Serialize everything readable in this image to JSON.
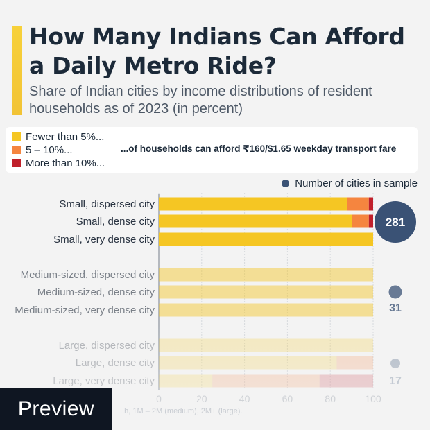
{
  "header": {
    "title": "How Many Indians Can Afford a Daily Metro Ride?",
    "subtitle": "Share of Indian cities by income distributions of resident households as of 2023 (in percent)"
  },
  "legend": {
    "items": [
      {
        "label": "Fewer than 5%...",
        "color": "#f5c623"
      },
      {
        "label": "5 – 10%...",
        "color": "#f5853f"
      },
      {
        "label": "More than 10%...",
        "color": "#c0202b"
      }
    ],
    "note": "...of households can afford ₹160/$1.65 weekday transport fare",
    "cities_label": "Number of cities in sample"
  },
  "chart_data": {
    "type": "bar",
    "orientation": "horizontal",
    "stacked": true,
    "categories": [
      "Small, dispersed city",
      "Small, dense city",
      "Small, very dense city",
      "Medium-sized, dispersed city",
      "Medium-sized, dense city",
      "Medium-sized, very dense city",
      "Large, dispersed city",
      "Large, dense city",
      "Large, very dense city"
    ],
    "series": [
      {
        "name": "Fewer than 5%...",
        "color": "#f5c623",
        "values": [
          88,
          90,
          100,
          100,
          100,
          100,
          100,
          83,
          25
        ]
      },
      {
        "name": "5 – 10%...",
        "color": "#f5853f",
        "values": [
          10,
          8,
          0,
          0,
          0,
          0,
          0,
          17,
          50
        ]
      },
      {
        "name": "More than 10%...",
        "color": "#c0202b",
        "values": [
          2,
          2,
          0,
          0,
          0,
          0,
          0,
          0,
          25
        ]
      }
    ],
    "groups": [
      {
        "label": "Small",
        "cities": 281
      },
      {
        "label": "Medium-sized",
        "cities": 31
      },
      {
        "label": "Large",
        "cities": 17
      }
    ],
    "x_ticks": [
      "0",
      "20",
      "40",
      "60",
      "80",
      "100"
    ],
    "xlim": [
      0,
      100
    ]
  },
  "preview_label": "Preview",
  "footnote": "...h, 1M – 2M (medium), 2M+ (large)."
}
